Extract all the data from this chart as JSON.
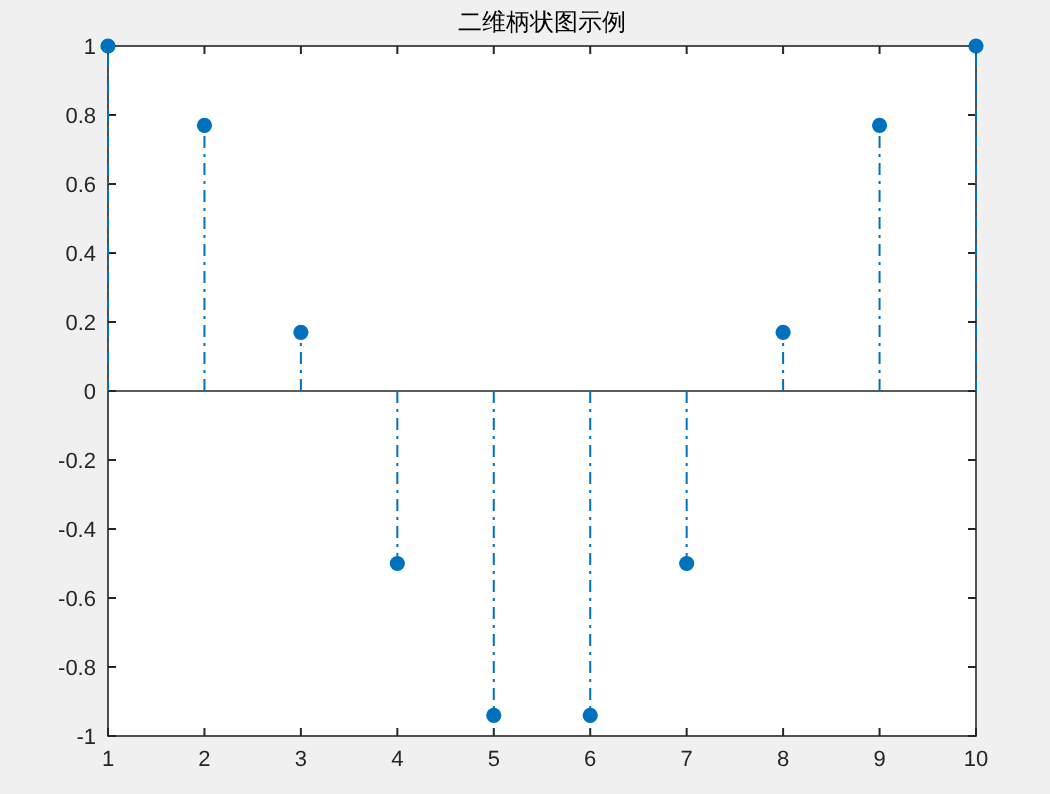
{
  "chart_data": {
    "type": "lollipop",
    "title": "二维柄状图示例",
    "x": [
      1,
      2,
      3,
      4,
      5,
      6,
      7,
      8,
      9,
      10
    ],
    "series": [
      {
        "color": "#0072bd",
        "values": [
          1,
          0.77,
          0.17,
          -0.5,
          -0.94,
          -0.94,
          -0.5,
          0.17,
          0.77,
          1
        ]
      }
    ],
    "xlim": [
      1,
      10
    ],
    "xticks": [
      1,
      2,
      3,
      4,
      5,
      6,
      7,
      8,
      9,
      10
    ],
    "ylim": [
      -1,
      1
    ],
    "yticks": [
      -1,
      -0.8,
      -0.6,
      -0.4,
      -0.2,
      0,
      0.2,
      0.4,
      0.6,
      0.8,
      1
    ],
    "ref_lines": [
      {
        "axis": "y",
        "value": 0,
        "color": "#262626"
      }
    ],
    "marker": "circle",
    "line_style": "dashed"
  }
}
